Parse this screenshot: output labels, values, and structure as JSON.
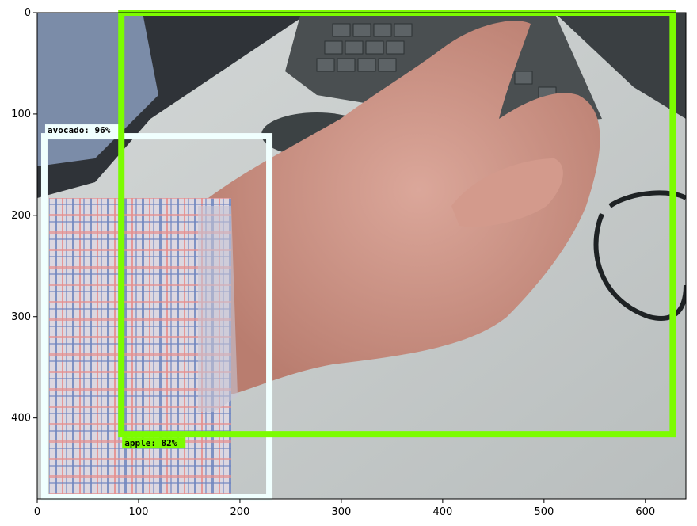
{
  "figure": {
    "axes": {
      "x_ticks": [
        0,
        100,
        200,
        300,
        400,
        500,
        600
      ],
      "y_ticks": [
        0,
        100,
        200,
        300,
        400
      ],
      "x_range": [
        0,
        640
      ],
      "y_range": [
        480,
        0
      ]
    },
    "image": {
      "colors": {
        "desk": "#c6cac9",
        "desk_shadow": "#8f9596",
        "keyboard": "#4a4f51",
        "mouse": "#3c4244",
        "skin": "#c98f7f",
        "skin_light": "#dba79a",
        "shirt_base": "#dcd7e0",
        "shirt_blue": "#6f86bf",
        "shirt_red": "#e6908f",
        "sleeve_dark": "#2b2f36",
        "cable": "#1e2224"
      }
    },
    "detections": [
      {
        "label": "avocado: 96%",
        "box": {
          "x_min": 7,
          "y_min": 122,
          "x_max": 229,
          "y_max": 478
        },
        "color": "#f0fffe"
      },
      {
        "label": "apple: 82%",
        "box": {
          "x_min": 83,
          "y_min": 0,
          "x_max": 627,
          "y_max": 416
        },
        "color": "#7cfc00"
      }
    ]
  }
}
